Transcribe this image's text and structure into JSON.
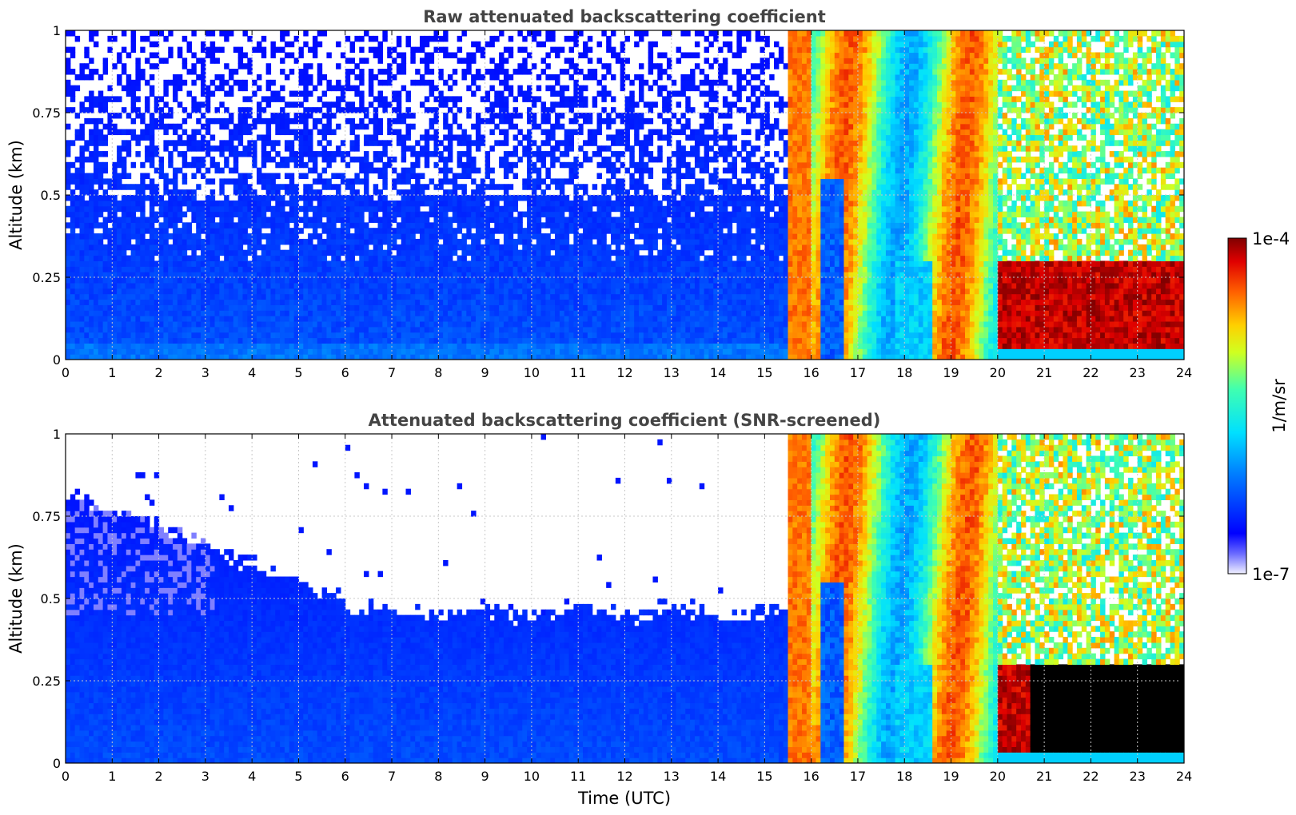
{
  "chart_data": [
    {
      "type": "heatmap",
      "title": "Raw attenuated backscattering coefficient",
      "xlabel": "",
      "ylabel": "Altitude (km)",
      "xlim": [
        0,
        24
      ],
      "ylim": [
        0,
        1
      ],
      "x_ticks": [
        "0",
        "1",
        "2",
        "3",
        "4",
        "5",
        "6",
        "7",
        "8",
        "9",
        "10",
        "11",
        "12",
        "13",
        "14",
        "15",
        "16",
        "17",
        "18",
        "19",
        "20",
        "21",
        "22",
        "23",
        "24"
      ],
      "y_ticks": [
        "0",
        "0.25",
        "0.5",
        "0.75",
        "1"
      ],
      "grid": true,
      "colorscale": "jet",
      "regions": [
        {
          "x": [
            0,
            15.5
          ],
          "y": [
            0,
            1
          ],
          "level": "low (blue, noisy above 0.5 km)"
        },
        {
          "x": [
            15.5,
            16.3
          ],
          "y": [
            0,
            1
          ],
          "level": "high (orange plume)"
        },
        {
          "x": [
            16.3,
            20.0
          ],
          "y": [
            0,
            1
          ],
          "level": "medium (green-yellow streaks)"
        },
        {
          "x": [
            20.0,
            23.9
          ],
          "y": [
            0.03,
            0.3
          ],
          "level": "very high (dark red layer)"
        }
      ]
    },
    {
      "type": "heatmap",
      "title": "Attenuated backscattering coefficient (SNR-screened)",
      "xlabel": "Time (UTC)",
      "ylabel": "Altitude (km)",
      "xlim": [
        0,
        24
      ],
      "ylim": [
        0,
        1
      ],
      "x_ticks": [
        "0",
        "1",
        "2",
        "3",
        "4",
        "5",
        "6",
        "7",
        "8",
        "9",
        "10",
        "11",
        "12",
        "13",
        "14",
        "15",
        "16",
        "17",
        "18",
        "19",
        "20",
        "21",
        "22",
        "23",
        "24"
      ],
      "y_ticks": [
        "0",
        "0.25",
        "0.5",
        "0.75",
        "1"
      ],
      "grid": true,
      "colorscale": "jet",
      "regions": [
        {
          "x": [
            0,
            3
          ],
          "y": [
            0,
            0.8
          ],
          "level": "low (blue) with screened gaps"
        },
        {
          "x": [
            3,
            15.5
          ],
          "y": [
            0,
            0.45
          ],
          "level": "low (blue)"
        },
        {
          "x": [
            15.5,
            20.0
          ],
          "y": [
            0,
            1
          ],
          "level": "medium to high"
        },
        {
          "x": [
            20.7,
            23.9
          ],
          "y": [
            0.03,
            0.3
          ],
          "level": "saturated (black)"
        }
      ]
    }
  ],
  "colorbar": {
    "label": "1/m/sr",
    "max_label": "1e-4",
    "min_label": "1e-7",
    "scale": "log",
    "range": [
      1e-07,
      0.0001
    ]
  }
}
